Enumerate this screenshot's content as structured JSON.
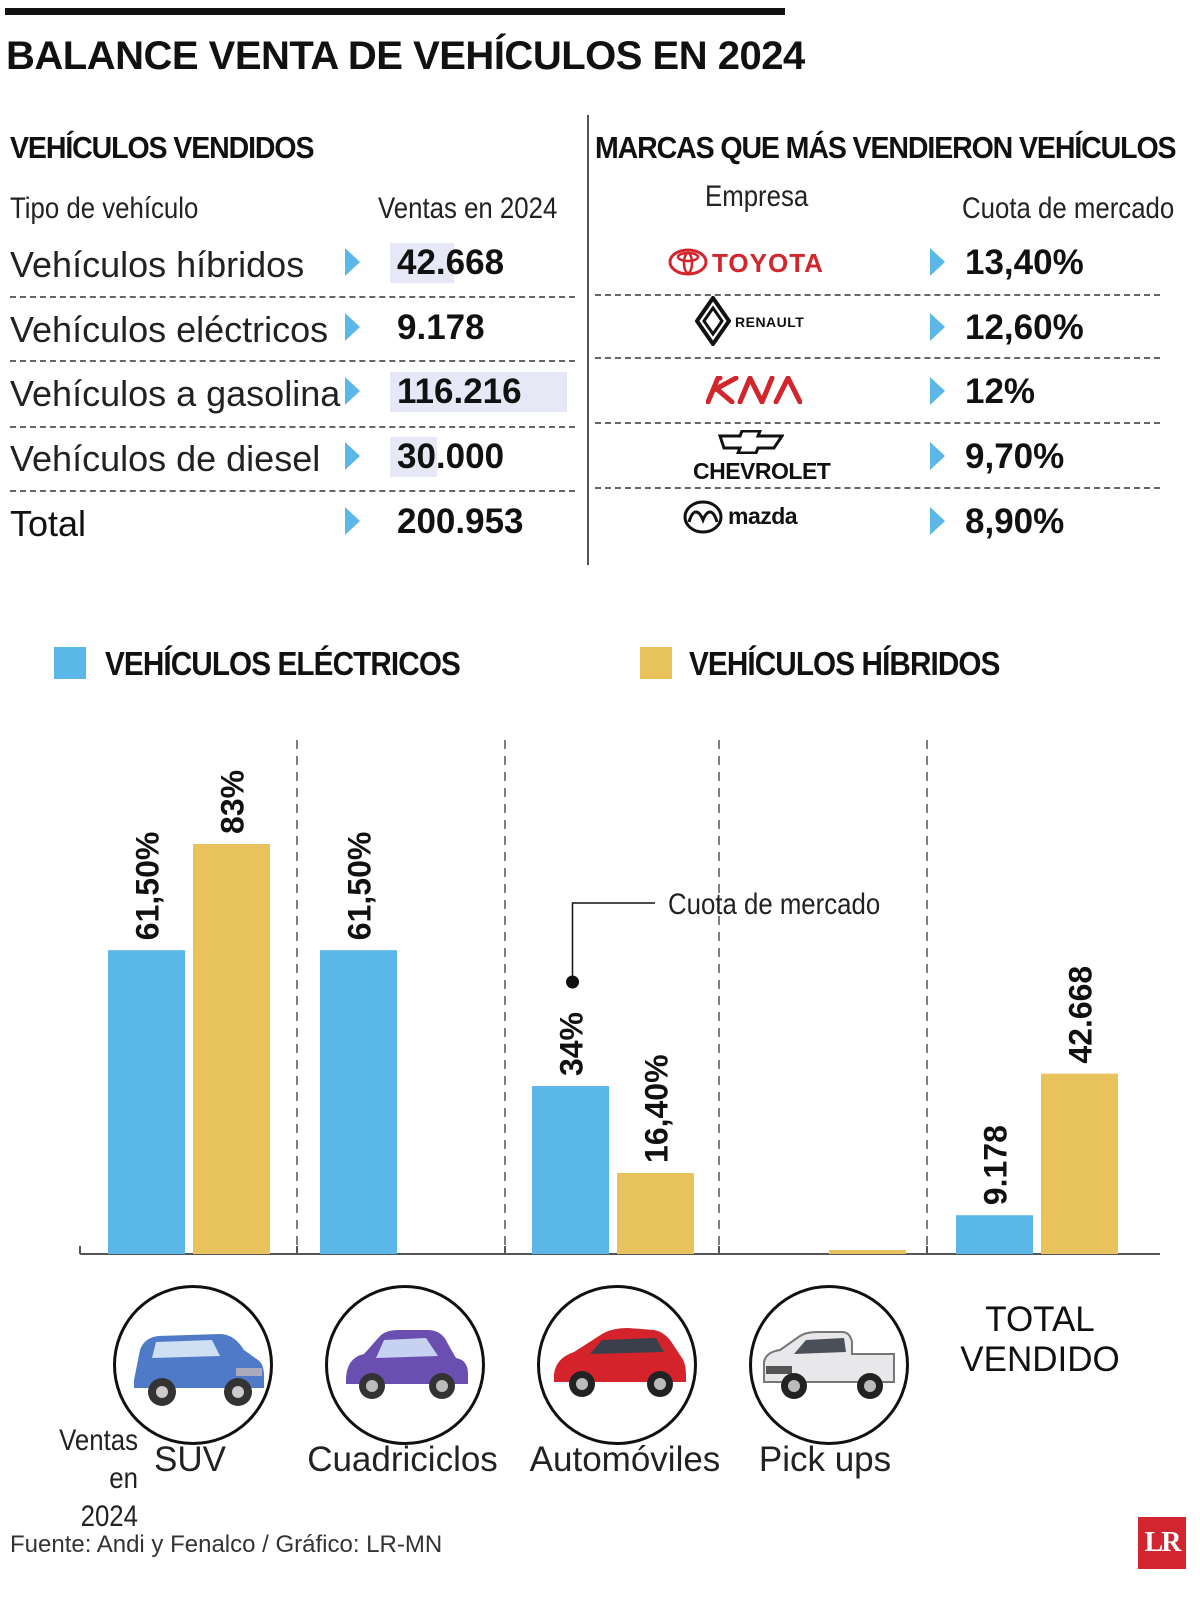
{
  "title": "BALANCE VENTA DE VEHÍCULOS EN 2024",
  "left_table": {
    "title": "VEHÍCULOS VENDIDOS",
    "col1_header": "Tipo de vehículo",
    "col2_header": "Ventas en 2024",
    "rows": [
      {
        "label": "Vehículos híbridos",
        "value": "42.668"
      },
      {
        "label": "Vehículos eléctricos",
        "value": "9.178"
      },
      {
        "label": "Vehículos a gasolina",
        "value": "116.216"
      },
      {
        "label": "Vehículos de diesel",
        "value": "30.000"
      },
      {
        "label": "Total",
        "value": "200.953"
      }
    ]
  },
  "right_table": {
    "title": "MARCAS QUE MÁS VENDIERON VEHÍCULOS",
    "col1_header": "Empresa",
    "col2_header": "Cuota de mercado",
    "rows": [
      {
        "brand": "TOYOTA",
        "logo": "toyota-logo",
        "value": "13,40%"
      },
      {
        "brand": "RENAULT",
        "logo": "renault-logo",
        "value": "12,60%"
      },
      {
        "brand": "KIA",
        "logo": "kia-logo",
        "value": "12%"
      },
      {
        "brand": "CHEVROLET",
        "logo": "chevrolet-logo",
        "value": "9,70%"
      },
      {
        "brand": "mazda",
        "logo": "mazda-logo",
        "value": "8,90%"
      }
    ]
  },
  "chart_data": {
    "type": "bar",
    "categories": [
      "SUV",
      "Cuadriciclos",
      "Automóviles",
      "Pick ups",
      "TOTAL VENDIDO"
    ],
    "series": [
      {
        "name": "VEHÍCULOS ELÉCTRICOS",
        "color": "#5bb7e8",
        "values": [
          61.5,
          61.5,
          34,
          null,
          9178
        ],
        "labels": [
          "61,50%",
          "61,50%",
          "34%",
          "",
          "9.178"
        ]
      },
      {
        "name": "VEHÍCULOS HÍBRIDOS",
        "color": "#e8c25c",
        "values": [
          83,
          null,
          16.4,
          0.5,
          42668
        ],
        "labels": [
          "83%",
          "",
          "16,40%",
          "",
          "42.668"
        ]
      }
    ],
    "total_category_scale_max": 97000,
    "annotation": "Cuota de mercado",
    "axis_note": "Ventas en 2024",
    "category_icons": [
      "suv-icon",
      "quadricycle-icon",
      "car-icon",
      "pickup-icon",
      ""
    ],
    "legend_position": "top"
  },
  "total_label_line1": "TOTAL",
  "total_label_line2": "VENDIDO",
  "axis_note_line1": "Ventas",
  "axis_note_line2": "en 2024",
  "source": "Fuente: Andi y Fenalco / Gráfico: LR-MN",
  "logo": "LR"
}
